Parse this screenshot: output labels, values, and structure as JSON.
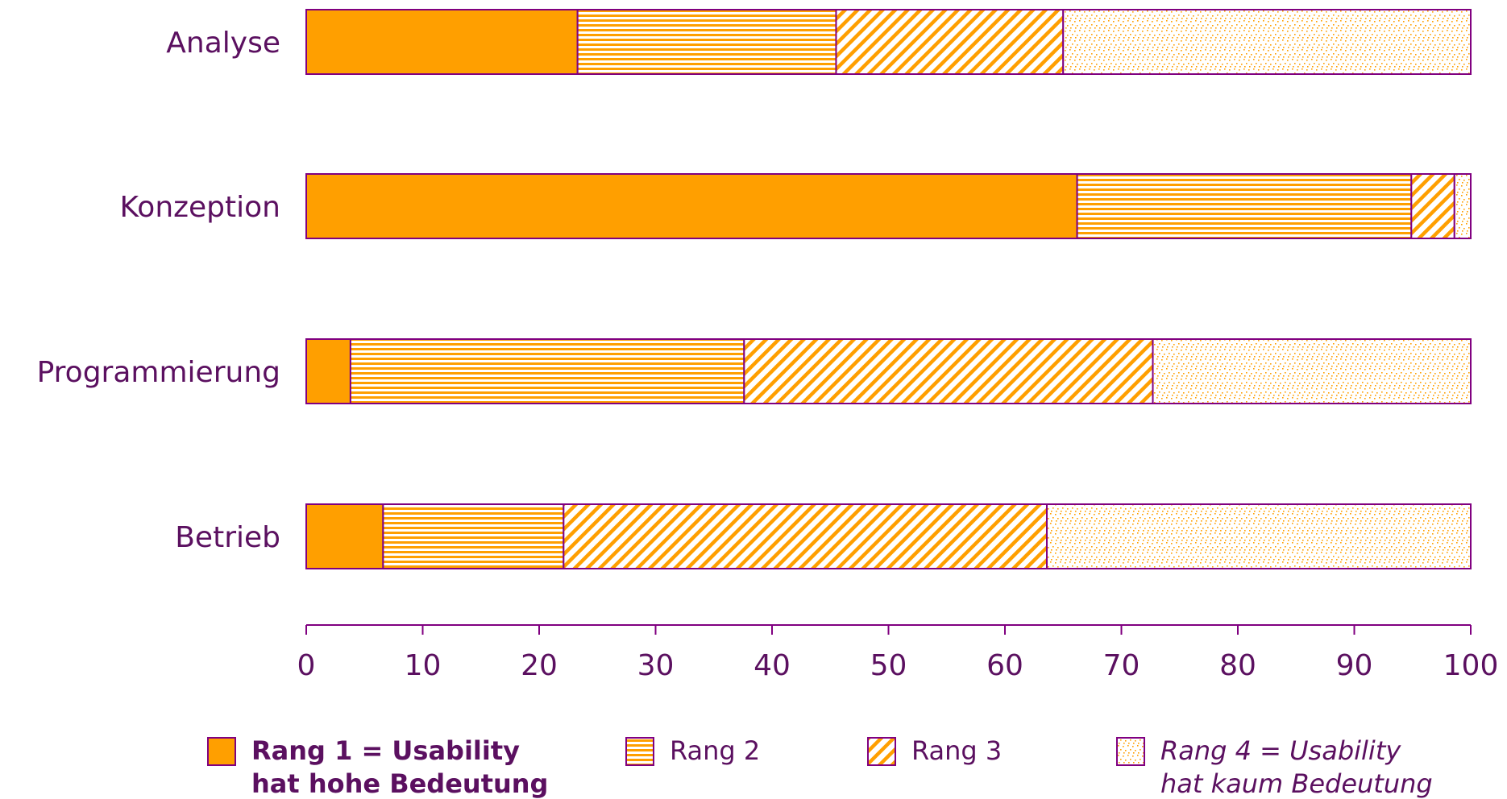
{
  "colors": {
    "text": "#5b1060",
    "outline": "#800080",
    "rank_fill": "#ff9f00",
    "background": "#ffffff"
  },
  "chart_data": {
    "type": "bar",
    "orientation": "horizontal",
    "stacked": true,
    "title": "",
    "xlabel": "",
    "ylabel": "",
    "xlim": [
      0,
      100
    ],
    "xticks": [
      0,
      10,
      20,
      30,
      40,
      50,
      60,
      70,
      80,
      90,
      100
    ],
    "xtick_labels": [
      "0",
      "10",
      "20",
      "30",
      "40",
      "50",
      "60",
      "70",
      "80",
      "90",
      "100"
    ],
    "grid": false,
    "legend_position": "bottom",
    "categories": [
      "Analyse",
      "Konzeption",
      "Programmierung",
      "Betrieb"
    ],
    "series": [
      {
        "key": "rang1",
        "legend_lines": [
          "Rang 1 = Usability",
          "hat hohe Bedeutung"
        ],
        "pattern": "solid",
        "legend_style": "bold",
        "values": [
          23.3,
          66.2,
          3.8,
          6.6
        ]
      },
      {
        "key": "rang2",
        "legend_lines": [
          "Rang 2"
        ],
        "pattern": "horizontal-lines",
        "legend_style": "normal",
        "values": [
          22.2,
          28.7,
          33.8,
          15.5
        ]
      },
      {
        "key": "rang3",
        "legend_lines": [
          "Rang 3"
        ],
        "pattern": "diagonal-lines",
        "legend_style": "normal",
        "values": [
          19.5,
          3.7,
          35.1,
          41.5
        ]
      },
      {
        "key": "rang4",
        "legend_lines": [
          "Rang 4 = Usability",
          "hat kaum Bedeutung"
        ],
        "pattern": "dots",
        "legend_style": "italic",
        "values": [
          35.0,
          1.4,
          27.3,
          36.4
        ]
      }
    ]
  }
}
